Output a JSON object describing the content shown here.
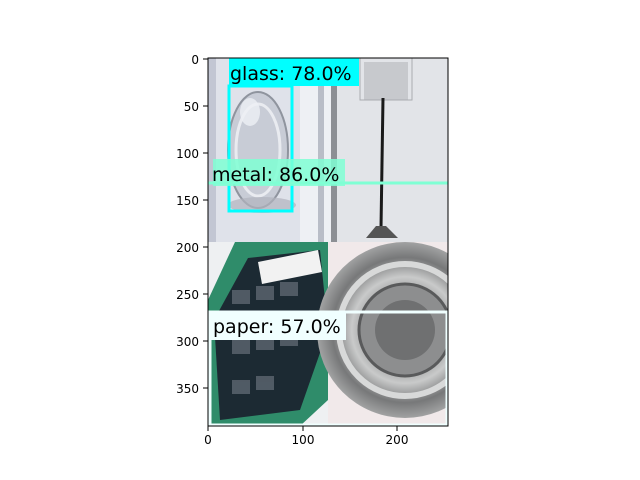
{
  "figure": {
    "x_ticks": [
      "0",
      "100",
      "200"
    ],
    "y_ticks": [
      "0",
      "50",
      "100",
      "150",
      "200",
      "250",
      "300",
      "350"
    ]
  },
  "detections": [
    {
      "label": "glass: 78.0%",
      "color": "#00ffff"
    },
    {
      "label": "metal: 86.0%",
      "color": "#7fffd4"
    },
    {
      "label": "paper: 57.0%",
      "color": "#f0ffff"
    }
  ],
  "photo_tiles": [
    {
      "name": "glass-jar-tile",
      "background": "#dfe2ea"
    },
    {
      "name": "wall-pole-tile",
      "background": "#d9dce0"
    },
    {
      "name": "packaging-tile",
      "background": "#2f8c6a"
    },
    {
      "name": "metal-can-tile",
      "background": "#a8a9aa"
    }
  ]
}
